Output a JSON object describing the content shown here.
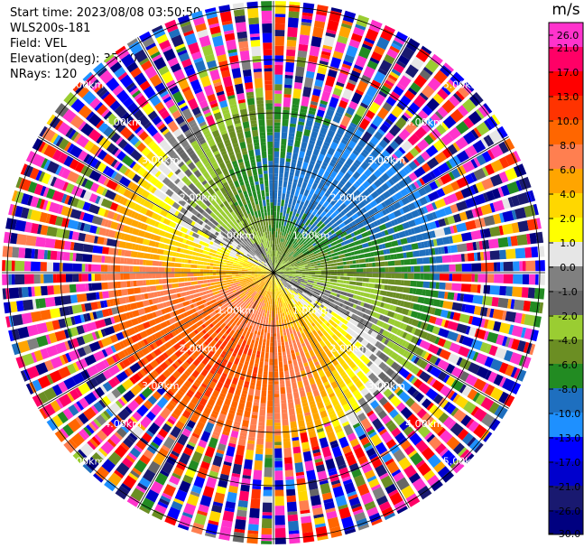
{
  "header": {
    "start_time": "Start time: 2023/08/08 03:50:50",
    "instrument": "WLS200s-181",
    "field": "Field: VEL",
    "elevation": "Elevation(deg): 35.30",
    "nrays": "NRays: 120"
  },
  "chart_data": {
    "type": "heatmap",
    "projection": "polar-ppi",
    "field": "VEL",
    "units": "m/s",
    "nrays": 120,
    "range_rings": [
      "1.00km",
      "2.00km",
      "3.00km",
      "4.00km",
      "5.00km"
    ],
    "ring_label_bearings_deg": [
      45,
      135,
      225,
      315
    ],
    "colorbar": {
      "unit": "m/s",
      "ticks": [
        "26.0",
        "21.0",
        "17.0",
        "13.0",
        "10.0",
        "8.0",
        "6.0",
        "4.0",
        "2.0",
        "1.0",
        "0.0",
        "-1.0",
        "-2.0",
        "-4.0",
        "-6.0",
        "-8.0",
        "-10.0",
        "-13.0",
        "-17.0",
        "-21.0",
        "-26.0",
        "-30.0"
      ],
      "colors": [
        "#ff33cc",
        "#ff0066",
        "#ff0000",
        "#ff3300",
        "#ff6600",
        "#ff7f50",
        "#ffa500",
        "#ffd700",
        "#ffff00",
        "#e6e6e6",
        "#808080",
        "#666666",
        "#9acd32",
        "#6b8e23",
        "#228b22",
        "#1e6fbf",
        "#1e90ff",
        "#0000ff",
        "#0000cd",
        "#191970",
        "#000080"
      ]
    },
    "structure": {
      "outer_range_km": 5.1,
      "noise_start_km": 3.2,
      "wind_from_deg": 230,
      "max_speed_mps": 10
    }
  }
}
